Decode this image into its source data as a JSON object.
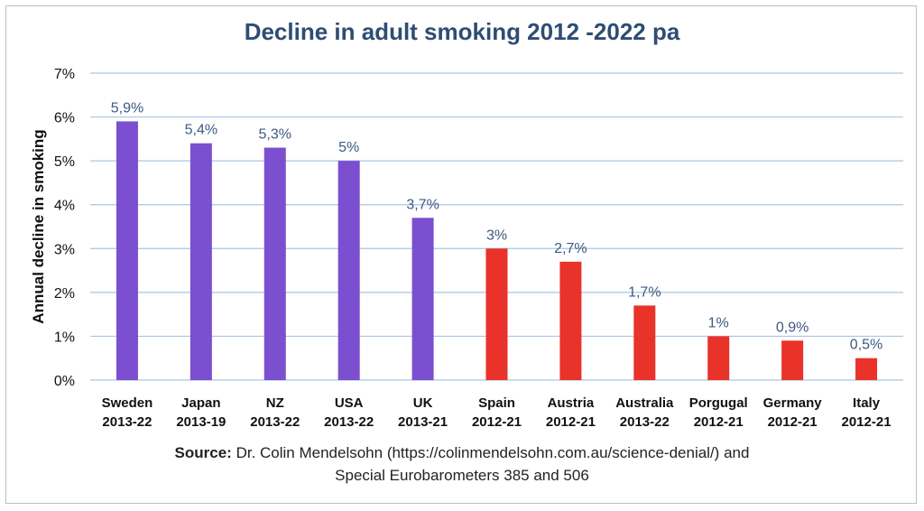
{
  "chart_data": {
    "type": "bar",
    "title": "Decline in adult smoking 2012 -2022 pa",
    "ylabel": "Annual decline in smoking",
    "xlabel": "",
    "ylim": [
      0,
      7
    ],
    "y_ticks": [
      "0%",
      "1%",
      "2%",
      "3%",
      "4%",
      "5%",
      "6%",
      "7%"
    ],
    "grid": "horizontal",
    "categories": [
      {
        "name": "Sweden",
        "period": "2013-22"
      },
      {
        "name": "Japan",
        "period": "2013-19"
      },
      {
        "name": "NZ",
        "period": "2013-22"
      },
      {
        "name": "USA",
        "period": "2013-22"
      },
      {
        "name": "UK",
        "period": "2013-21"
      },
      {
        "name": "Spain",
        "period": "2012-21"
      },
      {
        "name": "Austria",
        "period": "2012-21"
      },
      {
        "name": "Australia",
        "period": "2013-22"
      },
      {
        "name": "Porgugal",
        "period": "2012-21"
      },
      {
        "name": "Germany",
        "period": "2012-21"
      },
      {
        "name": "Italy",
        "period": "2012-21"
      }
    ],
    "values": [
      5.9,
      5.4,
      5.3,
      5.0,
      3.7,
      3.0,
      2.7,
      1.7,
      1.0,
      0.9,
      0.5
    ],
    "data_labels": [
      "5,9%",
      "5,4%",
      "5,3%",
      "5%",
      "3,7%",
      "3%",
      "2,7%",
      "1,7%",
      "1%",
      "0,9%",
      "0,5%"
    ],
    "bar_colors": [
      "#7b4fcf",
      "#7b4fcf",
      "#7b4fcf",
      "#7b4fcf",
      "#7b4fcf",
      "#e8322a",
      "#e8322a",
      "#e8322a",
      "#e8322a",
      "#e8322a",
      "#e8322a"
    ]
  },
  "colors": {
    "title": "#2e4d73",
    "gridline": "#a9c6e3",
    "axis_text": "#111111",
    "data_label": "#3c5a80"
  },
  "source": {
    "label": "Source:",
    "text_line1": " Dr. Colin Mendelsohn (https://colinmendelsohn.com.au/science-denial/) and",
    "text_line2": "Special Eurobarometers 385 and 506"
  }
}
